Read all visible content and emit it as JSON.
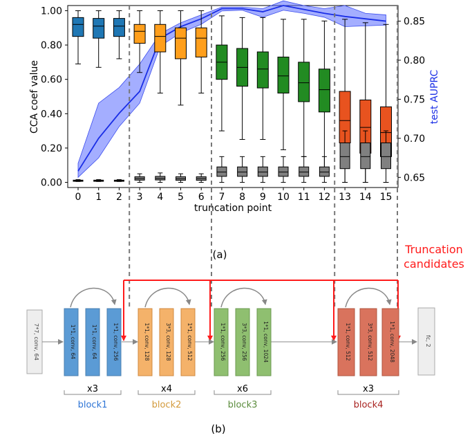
{
  "chart_data": {
    "type": "boxplot",
    "title": "",
    "panel_caption": "(a)",
    "xlabel": "truncation point",
    "ylabel": "CCA coef value",
    "y2label": "test AUPRC",
    "x_ticks": [
      "0",
      "1",
      "2",
      "3",
      "4",
      "5",
      "6",
      "7",
      "8",
      "9",
      "10",
      "11",
      "12",
      "13",
      "14",
      "15"
    ],
    "ylim": [
      -0.03,
      1.03
    ],
    "y_ticks": [
      "0.00",
      "0.20",
      "0.40",
      "0.60",
      "0.80",
      "1.00"
    ],
    "y_tick_values": [
      0,
      0.2,
      0.4,
      0.6,
      0.8,
      1.0
    ],
    "y2lim": [
      0.637,
      0.87
    ],
    "y2_ticks": [
      "0.65",
      "0.70",
      "0.75",
      "0.80",
      "0.85"
    ],
    "y2_tick_values": [
      0.65,
      0.7,
      0.75,
      0.8,
      0.85
    ],
    "box_colors": [
      "#1f77b4",
      "#1f77b4",
      "#1f77b4",
      "#ff9f1c",
      "#ff9f1c",
      "#ff9f1c",
      "#ff9f1c",
      "#228b22",
      "#228b22",
      "#228b22",
      "#228b22",
      "#228b22",
      "#228b22",
      "#e8531f",
      "#e8531f",
      "#e8531f"
    ],
    "upper_boxes": [
      {
        "x": 0,
        "wlo": 0.69,
        "q1": 0.85,
        "med": 0.92,
        "q3": 0.96,
        "whi": 1.0
      },
      {
        "x": 1,
        "wlo": 0.67,
        "q1": 0.84,
        "med": 0.91,
        "q3": 0.955,
        "whi": 1.0
      },
      {
        "x": 2,
        "wlo": 0.72,
        "q1": 0.85,
        "med": 0.91,
        "q3": 0.955,
        "whi": 1.0
      },
      {
        "x": 3,
        "wlo": 0.64,
        "q1": 0.81,
        "med": 0.88,
        "q3": 0.92,
        "whi": 1.0
      },
      {
        "x": 4,
        "wlo": 0.52,
        "q1": 0.76,
        "med": 0.85,
        "q3": 0.92,
        "whi": 1.0
      },
      {
        "x": 5,
        "wlo": 0.45,
        "q1": 0.72,
        "med": 0.84,
        "q3": 0.9,
        "whi": 1.0
      },
      {
        "x": 6,
        "wlo": 0.52,
        "q1": 0.73,
        "med": 0.84,
        "q3": 0.9,
        "whi": 1.0
      },
      {
        "x": 7,
        "wlo": 0.3,
        "q1": 0.6,
        "med": 0.7,
        "q3": 0.8,
        "whi": 0.97
      },
      {
        "x": 8,
        "wlo": 0.25,
        "q1": 0.56,
        "med": 0.67,
        "q3": 0.78,
        "whi": 0.96
      },
      {
        "x": 9,
        "wlo": 0.25,
        "q1": 0.55,
        "med": 0.66,
        "q3": 0.76,
        "whi": 0.96
      },
      {
        "x": 10,
        "wlo": 0.19,
        "q1": 0.52,
        "med": 0.62,
        "q3": 0.73,
        "whi": 0.95
      },
      {
        "x": 11,
        "wlo": 0.15,
        "q1": 0.47,
        "med": 0.58,
        "q3": 0.7,
        "whi": 0.95
      },
      {
        "x": 12,
        "wlo": 0.07,
        "q1": 0.41,
        "med": 0.54,
        "q3": 0.66,
        "whi": 0.94
      },
      {
        "x": 13,
        "wlo": 0.0,
        "q1": 0.23,
        "med": 0.36,
        "q3": 0.53,
        "whi": 0.95
      },
      {
        "x": 14,
        "wlo": 0.0,
        "q1": 0.17,
        "med": 0.32,
        "q3": 0.48,
        "whi": 0.93
      },
      {
        "x": 15,
        "wlo": 0.0,
        "q1": 0.15,
        "med": 0.29,
        "q3": 0.44,
        "whi": 0.92
      }
    ],
    "lower_boxes": [
      {
        "x": 0,
        "wlo": 0.005,
        "q1": 0.006,
        "med": 0.01,
        "q3": 0.013,
        "whi": 0.016
      },
      {
        "x": 1,
        "wlo": 0.005,
        "q1": 0.006,
        "med": 0.01,
        "q3": 0.013,
        "whi": 0.016
      },
      {
        "x": 2,
        "wlo": 0.005,
        "q1": 0.006,
        "med": 0.01,
        "q3": 0.013,
        "whi": 0.016
      },
      {
        "x": 3,
        "wlo": 0.0,
        "q1": 0.013,
        "med": 0.022,
        "q3": 0.033,
        "whi": 0.05
      },
      {
        "x": 4,
        "wlo": 0.0,
        "q1": 0.014,
        "med": 0.023,
        "q3": 0.035,
        "whi": 0.055
      },
      {
        "x": 5,
        "wlo": 0.0,
        "q1": 0.012,
        "med": 0.021,
        "q3": 0.033,
        "whi": 0.05
      },
      {
        "x": 6,
        "wlo": 0.0,
        "q1": 0.012,
        "med": 0.022,
        "q3": 0.033,
        "whi": 0.05
      },
      {
        "x": 7,
        "wlo": 0.0,
        "q1": 0.035,
        "med": 0.06,
        "q3": 0.09,
        "whi": 0.15
      },
      {
        "x": 8,
        "wlo": 0.0,
        "q1": 0.035,
        "med": 0.06,
        "q3": 0.09,
        "whi": 0.15
      },
      {
        "x": 9,
        "wlo": 0.0,
        "q1": 0.035,
        "med": 0.06,
        "q3": 0.09,
        "whi": 0.15
      },
      {
        "x": 10,
        "wlo": 0.0,
        "q1": 0.035,
        "med": 0.06,
        "q3": 0.09,
        "whi": 0.15
      },
      {
        "x": 11,
        "wlo": 0.0,
        "q1": 0.035,
        "med": 0.06,
        "q3": 0.09,
        "whi": 0.15
      },
      {
        "x": 12,
        "wlo": 0.0,
        "q1": 0.035,
        "med": 0.06,
        "q3": 0.09,
        "whi": 0.15
      },
      {
        "x": 13,
        "wlo": 0.0,
        "q1": 0.08,
        "med": 0.15,
        "q3": 0.23,
        "whi": 0.3
      },
      {
        "x": 14,
        "wlo": 0.0,
        "q1": 0.08,
        "med": 0.15,
        "q3": 0.23,
        "whi": 0.3
      },
      {
        "x": 15,
        "wlo": 0.0,
        "q1": 0.08,
        "med": 0.15,
        "q3": 0.23,
        "whi": 0.3
      }
    ],
    "auprc_series": {
      "name": "test AUPRC",
      "x": [
        0,
        1,
        2,
        3,
        4,
        5,
        6,
        7,
        8,
        9,
        10,
        11,
        12,
        13,
        14,
        15
      ],
      "mean": [
        0.658,
        0.7,
        0.732,
        0.76,
        0.828,
        0.843,
        0.853,
        0.866,
        0.866,
        0.862,
        0.87,
        0.865,
        0.86,
        0.856,
        0.853,
        0.85
      ],
      "lower": [
        0.65,
        0.675,
        0.715,
        0.745,
        0.818,
        0.835,
        0.846,
        0.863,
        0.864,
        0.855,
        0.864,
        0.86,
        0.855,
        0.843,
        0.844,
        0.845
      ],
      "upper": [
        0.668,
        0.745,
        0.765,
        0.795,
        0.834,
        0.848,
        0.858,
        0.868,
        0.868,
        0.866,
        0.876,
        0.87,
        0.866,
        0.87,
        0.86,
        0.858
      ],
      "color": "#1a2ee6"
    },
    "dashed_markers_at": [
      2,
      6,
      12,
      15
    ],
    "dashed_color": "#777777",
    "annotation_color": "#ff1a1a"
  },
  "diagram": {
    "panel_caption": "(b)",
    "annotation": {
      "line1": "Truncation",
      "line2": "candidates"
    },
    "input_layer": "7*7, conv, 64",
    "output_layer": "fc, 2",
    "blocks": [
      {
        "name": "block1",
        "repeat": "x3",
        "color": "#5b9bd5",
        "label_color": "#2e75d6",
        "layers": [
          "1*1, conv, 64",
          "1*1, conv, 64",
          "1*1, conv, 256"
        ]
      },
      {
        "name": "block2",
        "repeat": "x4",
        "color": "#f4b26a",
        "label_color": "#d39a3b",
        "layers": [
          "1*1, conv, 128",
          "3*3, conv, 128",
          "1*1, conv, 512"
        ]
      },
      {
        "name": "block3",
        "repeat": "x6",
        "color": "#8fbf70",
        "label_color": "#5b8c3d",
        "layers": [
          "1*1, conv, 256",
          "3*3, conv, 256",
          "1*1, conv, 1024"
        ]
      },
      {
        "name": "block4",
        "repeat": "x3",
        "color": "#d9735d",
        "label_color": "#a8221f",
        "layers": [
          "1*1, conv, 512",
          "3*3, conv, 512",
          "1*1, conv, 2048"
        ]
      }
    ]
  }
}
